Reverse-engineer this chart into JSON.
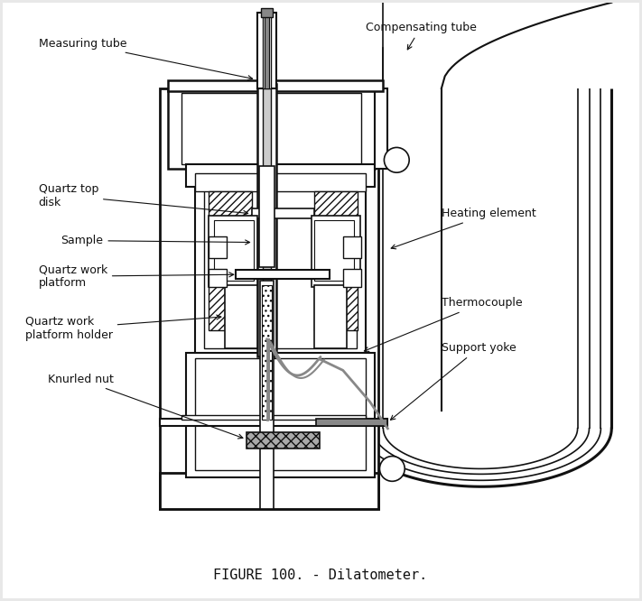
{
  "title": "FIGURE 100. - Dilatometer.",
  "bg": "#e8e8e8",
  "lc": "#111111",
  "gc": "#888888",
  "labels": {
    "measuring_tube": "Measuring tube",
    "compensating_tube": "Compensating tube",
    "quartz_top_disk": "Quartz top\ndisk",
    "sample": "Sample",
    "quartz_work_platform": "Quartz work\nplatform",
    "quartz_work_platform_holder": "Quartz work\nplatform holder",
    "knurled_nut": "Knurled nut",
    "heating_element": "Heating element",
    "thermocouple": "Thermocouple",
    "support_yoke": "Support yoke"
  },
  "fig_width": 7.11,
  "fig_height": 6.66,
  "dpi": 100
}
